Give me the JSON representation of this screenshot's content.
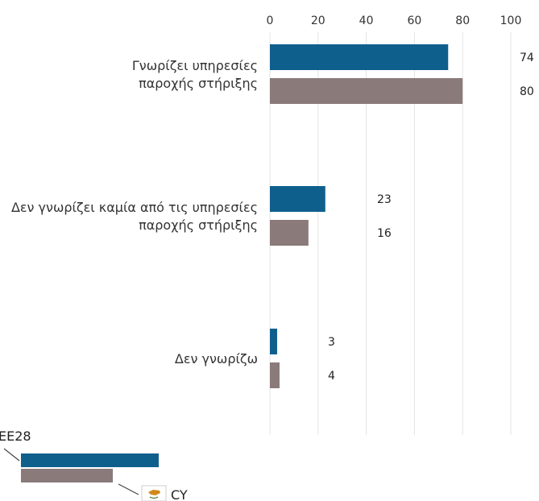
{
  "chart_data": {
    "type": "bar",
    "orientation": "horizontal",
    "categories": [
      [
        "Γνωρίζει υπηρεσίες",
        "παροχής στήριξης"
      ],
      [
        "Δεν γνωρίζει καμία από τις υπηρεσίες",
        "παροχής στήριξης"
      ],
      [
        "Δεν γνωρίζω"
      ]
    ],
    "series": [
      {
        "name": "EE28",
        "values": [
          74,
          23,
          3
        ],
        "color": "#0f5f8c"
      },
      {
        "name": "CY",
        "values": [
          80,
          16,
          4
        ],
        "color": "#8a7a7a"
      }
    ],
    "xlim": [
      0,
      100
    ],
    "xticks": [
      "0",
      "20",
      "40",
      "60",
      "80",
      "100"
    ],
    "grid": true,
    "legend_position": "bottom-left",
    "legend_icon": "cyprus-flag-icon"
  }
}
